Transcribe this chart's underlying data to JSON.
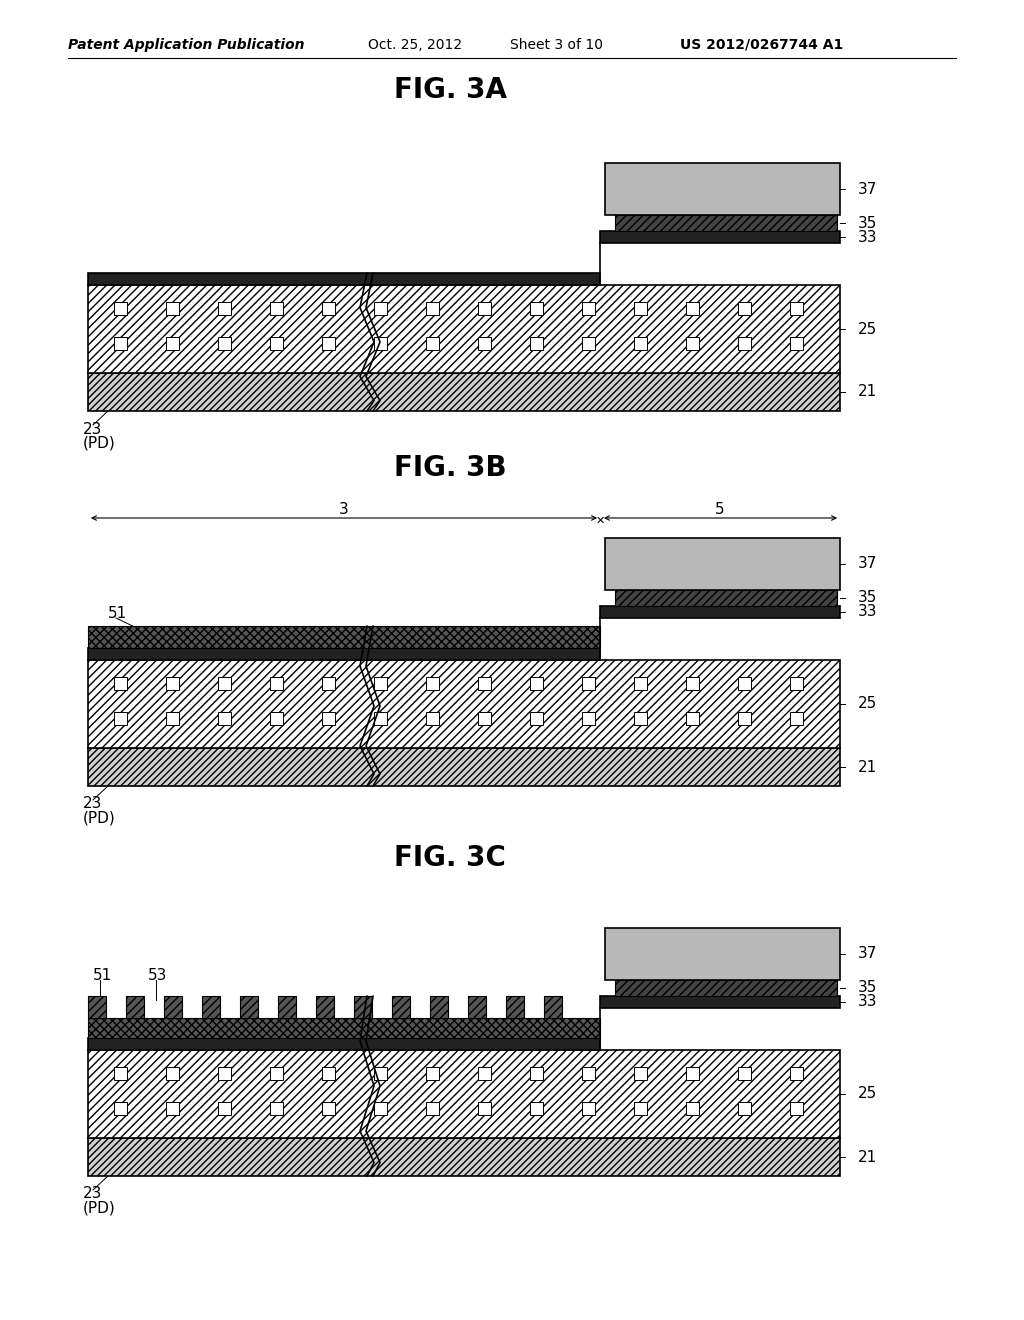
{
  "background_color": "#ffffff",
  "header_text": "Patent Application Publication",
  "header_date": "Oct. 25, 2012",
  "header_sheet": "Sheet 3 of 10",
  "header_patent": "US 2012/0267744 A1",
  "figures": [
    "FIG. 3A",
    "FIG. 3B",
    "FIG. 3C"
  ],
  "fig_title_fontsize": 20,
  "header_fontsize": 10,
  "label_fontsize": 11
}
